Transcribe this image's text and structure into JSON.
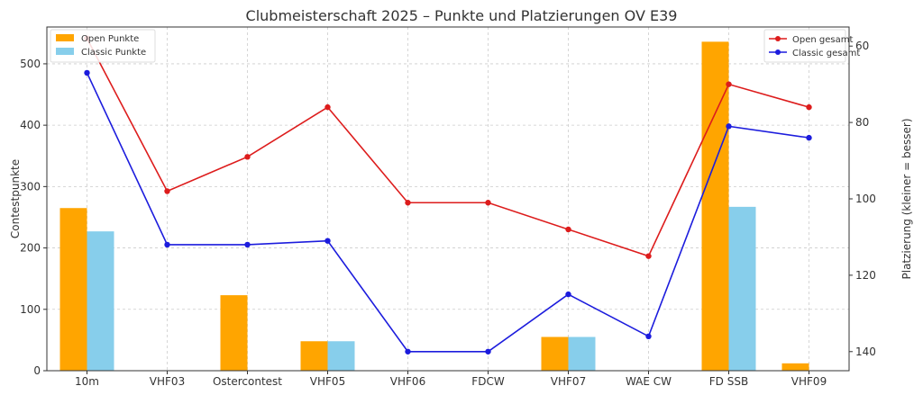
{
  "chart_data": {
    "type": "bar",
    "title": "Clubmeisterschaft 2025 – Punkte und Platzierungen OV E39",
    "xlabel": "",
    "ylabel": "Contestpunkte",
    "y2label": "Platzierung (kleiner = besser)",
    "categories": [
      "10m",
      "VHF03",
      "Ostercontest",
      "VHF05",
      "VHF06",
      "FDCW",
      "VHF07",
      "WAE CW",
      "FD SSB",
      "VHF09"
    ],
    "ylim": [
      0,
      560
    ],
    "yticks": [
      0,
      100,
      200,
      300,
      400,
      500
    ],
    "y2lim": [
      145,
      55
    ],
    "y2ticks": [
      60,
      80,
      100,
      120,
      140
    ],
    "grid": true,
    "bar_series": [
      {
        "name": "Open Punkte",
        "color": "#ffa500",
        "values": [
          265,
          0,
          123,
          48,
          0,
          0,
          55,
          0,
          536,
          12
        ]
      },
      {
        "name": "Classic Punkte",
        "color": "#87ceeb",
        "values": [
          227,
          0,
          0,
          48,
          0,
          0,
          55,
          0,
          267,
          0
        ]
      }
    ],
    "line_series": [
      {
        "name": "Open gesamt",
        "color": "#dd1c1c",
        "values": [
          58,
          98,
          89,
          76,
          101,
          101,
          108,
          115,
          70,
          76
        ]
      },
      {
        "name": "Classic gesamt",
        "color": "#1c1cdd",
        "values": [
          67,
          112,
          112,
          111,
          140,
          140,
          125,
          136,
          81,
          84
        ]
      }
    ],
    "legend_left": "top-left",
    "legend_right": "top-right"
  }
}
